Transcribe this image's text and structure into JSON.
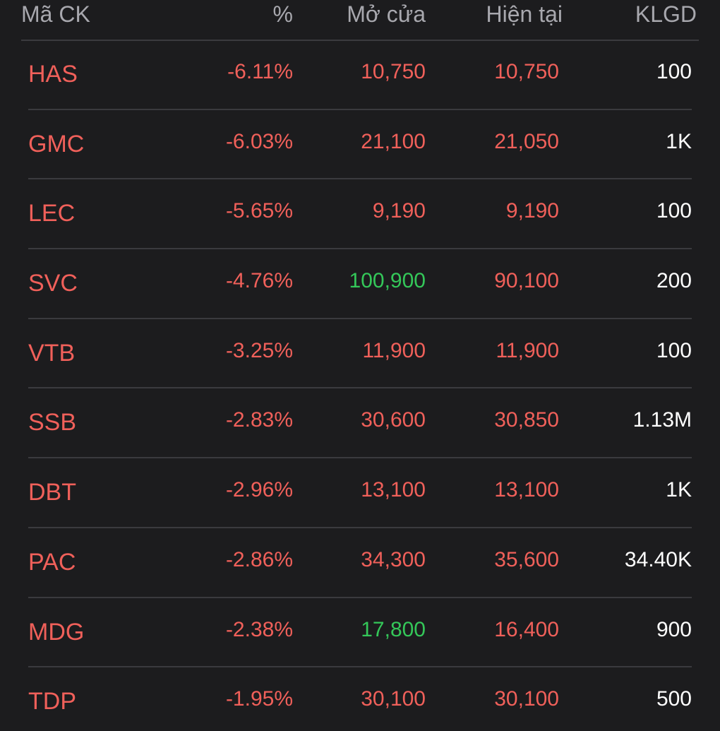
{
  "header": {
    "symbol": "Mã CK",
    "percent": "%",
    "open": "Mở cửa",
    "current": "Hiện tại",
    "volume": "KLGD"
  },
  "colors": {
    "background": "#1c1c1e",
    "down": "#f0605a",
    "up": "#34c759",
    "header_text": "#a8a8ae",
    "neutral": "#ffffff"
  },
  "rows": [
    {
      "symbol": "HAS",
      "percent": "-6.11%",
      "open": "10,750",
      "open_trend": "down",
      "current": "10,750",
      "volume": "100"
    },
    {
      "symbol": "GMC",
      "percent": "-6.03%",
      "open": "21,100",
      "open_trend": "down",
      "current": "21,050",
      "volume": "1K"
    },
    {
      "symbol": "LEC",
      "percent": "-5.65%",
      "open": "9,190",
      "open_trend": "down",
      "current": "9,190",
      "volume": "100"
    },
    {
      "symbol": "SVC",
      "percent": "-4.76%",
      "open": "100,900",
      "open_trend": "up",
      "current": "90,100",
      "volume": "200"
    },
    {
      "symbol": "VTB",
      "percent": "-3.25%",
      "open": "11,900",
      "open_trend": "down",
      "current": "11,900",
      "volume": "100"
    },
    {
      "symbol": "SSB",
      "percent": "-2.83%",
      "open": "30,600",
      "open_trend": "down",
      "current": "30,850",
      "volume": "1.13M"
    },
    {
      "symbol": "DBT",
      "percent": "-2.96%",
      "open": "13,100",
      "open_trend": "down",
      "current": "13,100",
      "volume": "1K"
    },
    {
      "symbol": "PAC",
      "percent": "-2.86%",
      "open": "34,300",
      "open_trend": "down",
      "current": "35,600",
      "volume": "34.40K"
    },
    {
      "symbol": "MDG",
      "percent": "-2.38%",
      "open": "17,800",
      "open_trend": "up",
      "current": "16,400",
      "volume": "900"
    },
    {
      "symbol": "TDP",
      "percent": "-1.95%",
      "open": "30,100",
      "open_trend": "down",
      "current": "30,100",
      "volume": "500"
    }
  ]
}
